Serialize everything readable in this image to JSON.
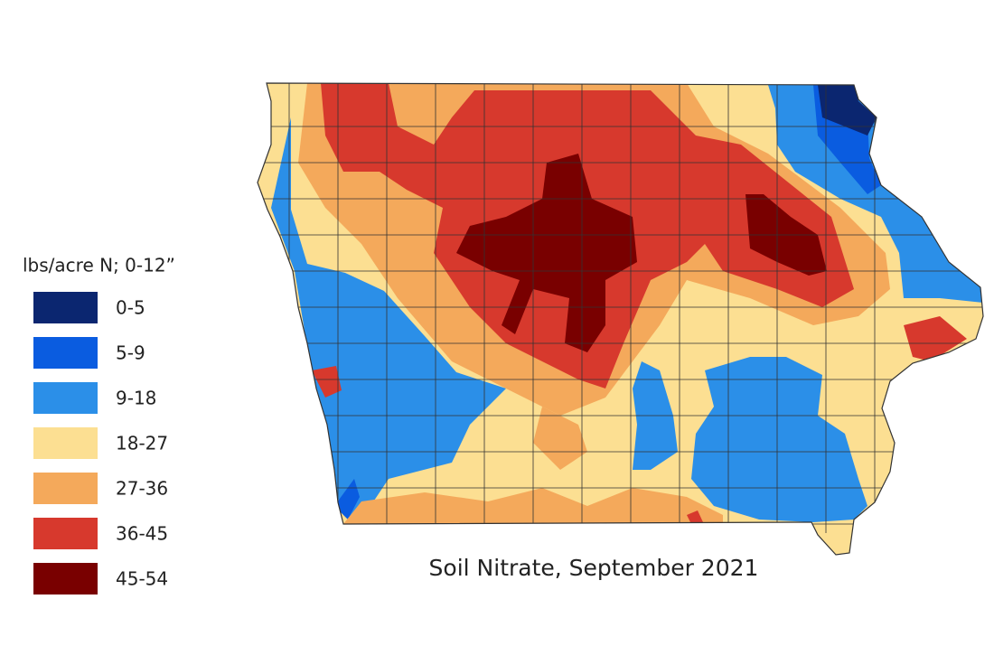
{
  "title": "Soil Nitrate, September 2021",
  "legend": {
    "title": "lbs/acre N; 0-12”",
    "items": [
      {
        "label": "0-5",
        "color": "#0b2670"
      },
      {
        "label": "5-9",
        "color": "#0a5ce0"
      },
      {
        "label": "9-18",
        "color": "#2b8fe8"
      },
      {
        "label": "18-27",
        "color": "#fcdf92"
      },
      {
        "label": "27-36",
        "color": "#f4a95b"
      },
      {
        "label": "36-45",
        "color": "#d7392d"
      },
      {
        "label": "45-54",
        "color": "#790000"
      }
    ]
  }
}
